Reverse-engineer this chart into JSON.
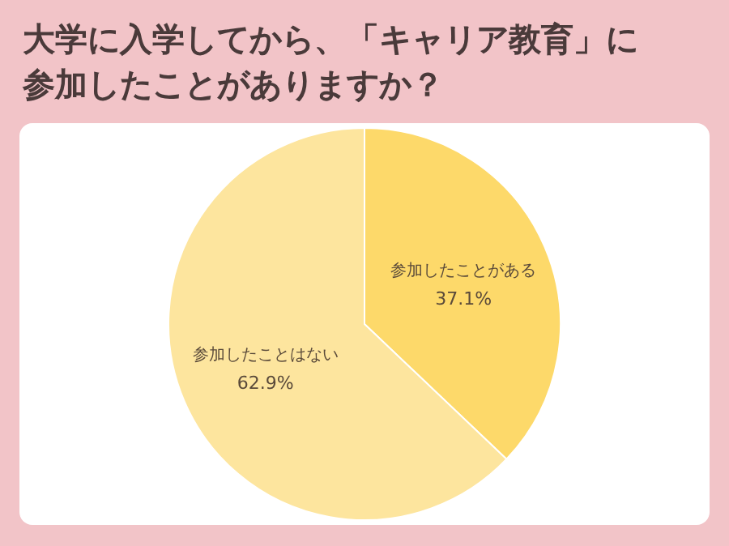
{
  "chart_data": {
    "type": "pie",
    "title": "大学に入学してから、「キャリア教育」に参加したことがありますか？",
    "categories": [
      "参加したことがある",
      "参加したことはない"
    ],
    "values": [
      37.1,
      62.9
    ],
    "value_labels": [
      "37.1%",
      "62.9%"
    ],
    "colors": [
      "#fdd96a",
      "#fde59e"
    ]
  }
}
